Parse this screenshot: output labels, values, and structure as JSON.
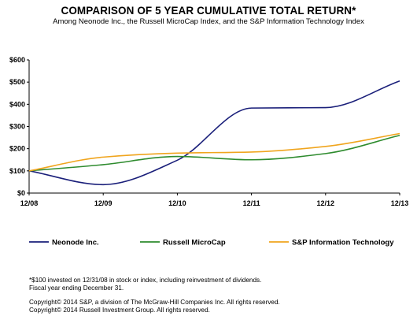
{
  "title": "COMPARISON OF 5 YEAR CUMULATIVE TOTAL RETURN*",
  "subtitle": "Among Neonode Inc., the Russell MicroCap Index, and the S&P Information Technology Index",
  "chart_data": {
    "type": "line",
    "categories": [
      "12/08",
      "12/09",
      "12/10",
      "12/11",
      "12/12",
      "12/13"
    ],
    "y_ticks": [
      "$0",
      "$100",
      "$200",
      "$300",
      "$400",
      "$500",
      "$600"
    ],
    "ylim": [
      0,
      600
    ],
    "grid": false,
    "legend_position": "bottom",
    "series": [
      {
        "name": "Neonode Inc.",
        "color": "#1a1f7a",
        "values": [
          100,
          38,
          148,
          383,
          385,
          505
        ]
      },
      {
        "name": "Russell MicroCap",
        "color": "#2e8b2e",
        "values": [
          100,
          128,
          165,
          150,
          178,
          260
        ]
      },
      {
        "name": "S&P Information Technology",
        "color": "#f0a51e",
        "values": [
          100,
          162,
          180,
          185,
          210,
          268
        ]
      }
    ]
  },
  "footnotes": {
    "line1": "*$100 invested on 12/31/08 in stock or index, including reinvestment of dividends.",
    "line2": "Fiscal year ending December 31.",
    "line3": "Copyright© 2014 S&P, a division of The McGraw-Hill Companies Inc. All rights reserved.",
    "line4": "Copyright© 2014 Russell Investment Group. All rights reserved."
  }
}
